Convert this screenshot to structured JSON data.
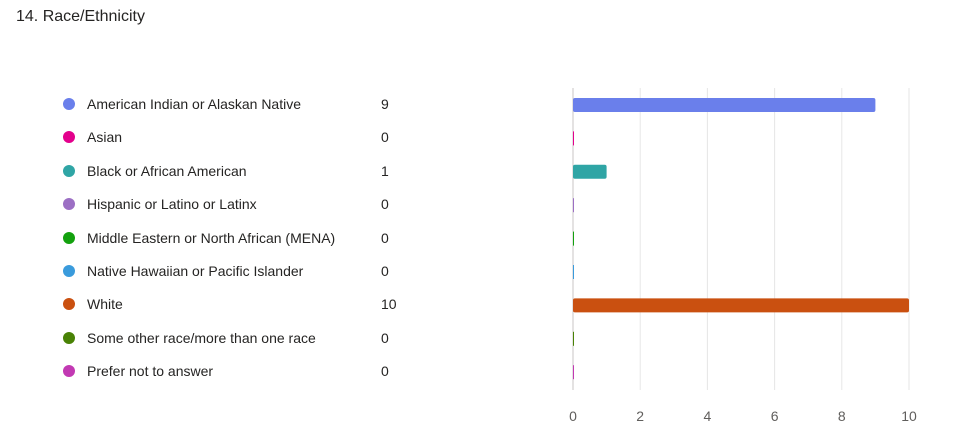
{
  "question": {
    "title": "14. Race/Ethnicity"
  },
  "chart_data": {
    "type": "bar",
    "orientation": "horizontal",
    "categories": [
      "American Indian or Alaskan Native",
      "Asian",
      "Black or African American",
      "Hispanic or Latino or Latinx",
      "Middle Eastern or North African (MENA)",
      "Native Hawaiian or Pacific Islander",
      "White",
      "Some other race/more than one race",
      "Prefer not to answer"
    ],
    "values": [
      9,
      0,
      1,
      0,
      0,
      0,
      10,
      0,
      0
    ],
    "colors": [
      "#6A7FEB",
      "#E3008C",
      "#2FA5A5",
      "#9C6FC4",
      "#13A10E",
      "#3A9BDC",
      "#CA5010",
      "#498205",
      "#C239B3"
    ],
    "xlim": [
      0,
      10
    ],
    "xticks": [
      "0",
      "2",
      "4",
      "6",
      "8",
      "10"
    ],
    "grid": true,
    "legend": "left"
  }
}
